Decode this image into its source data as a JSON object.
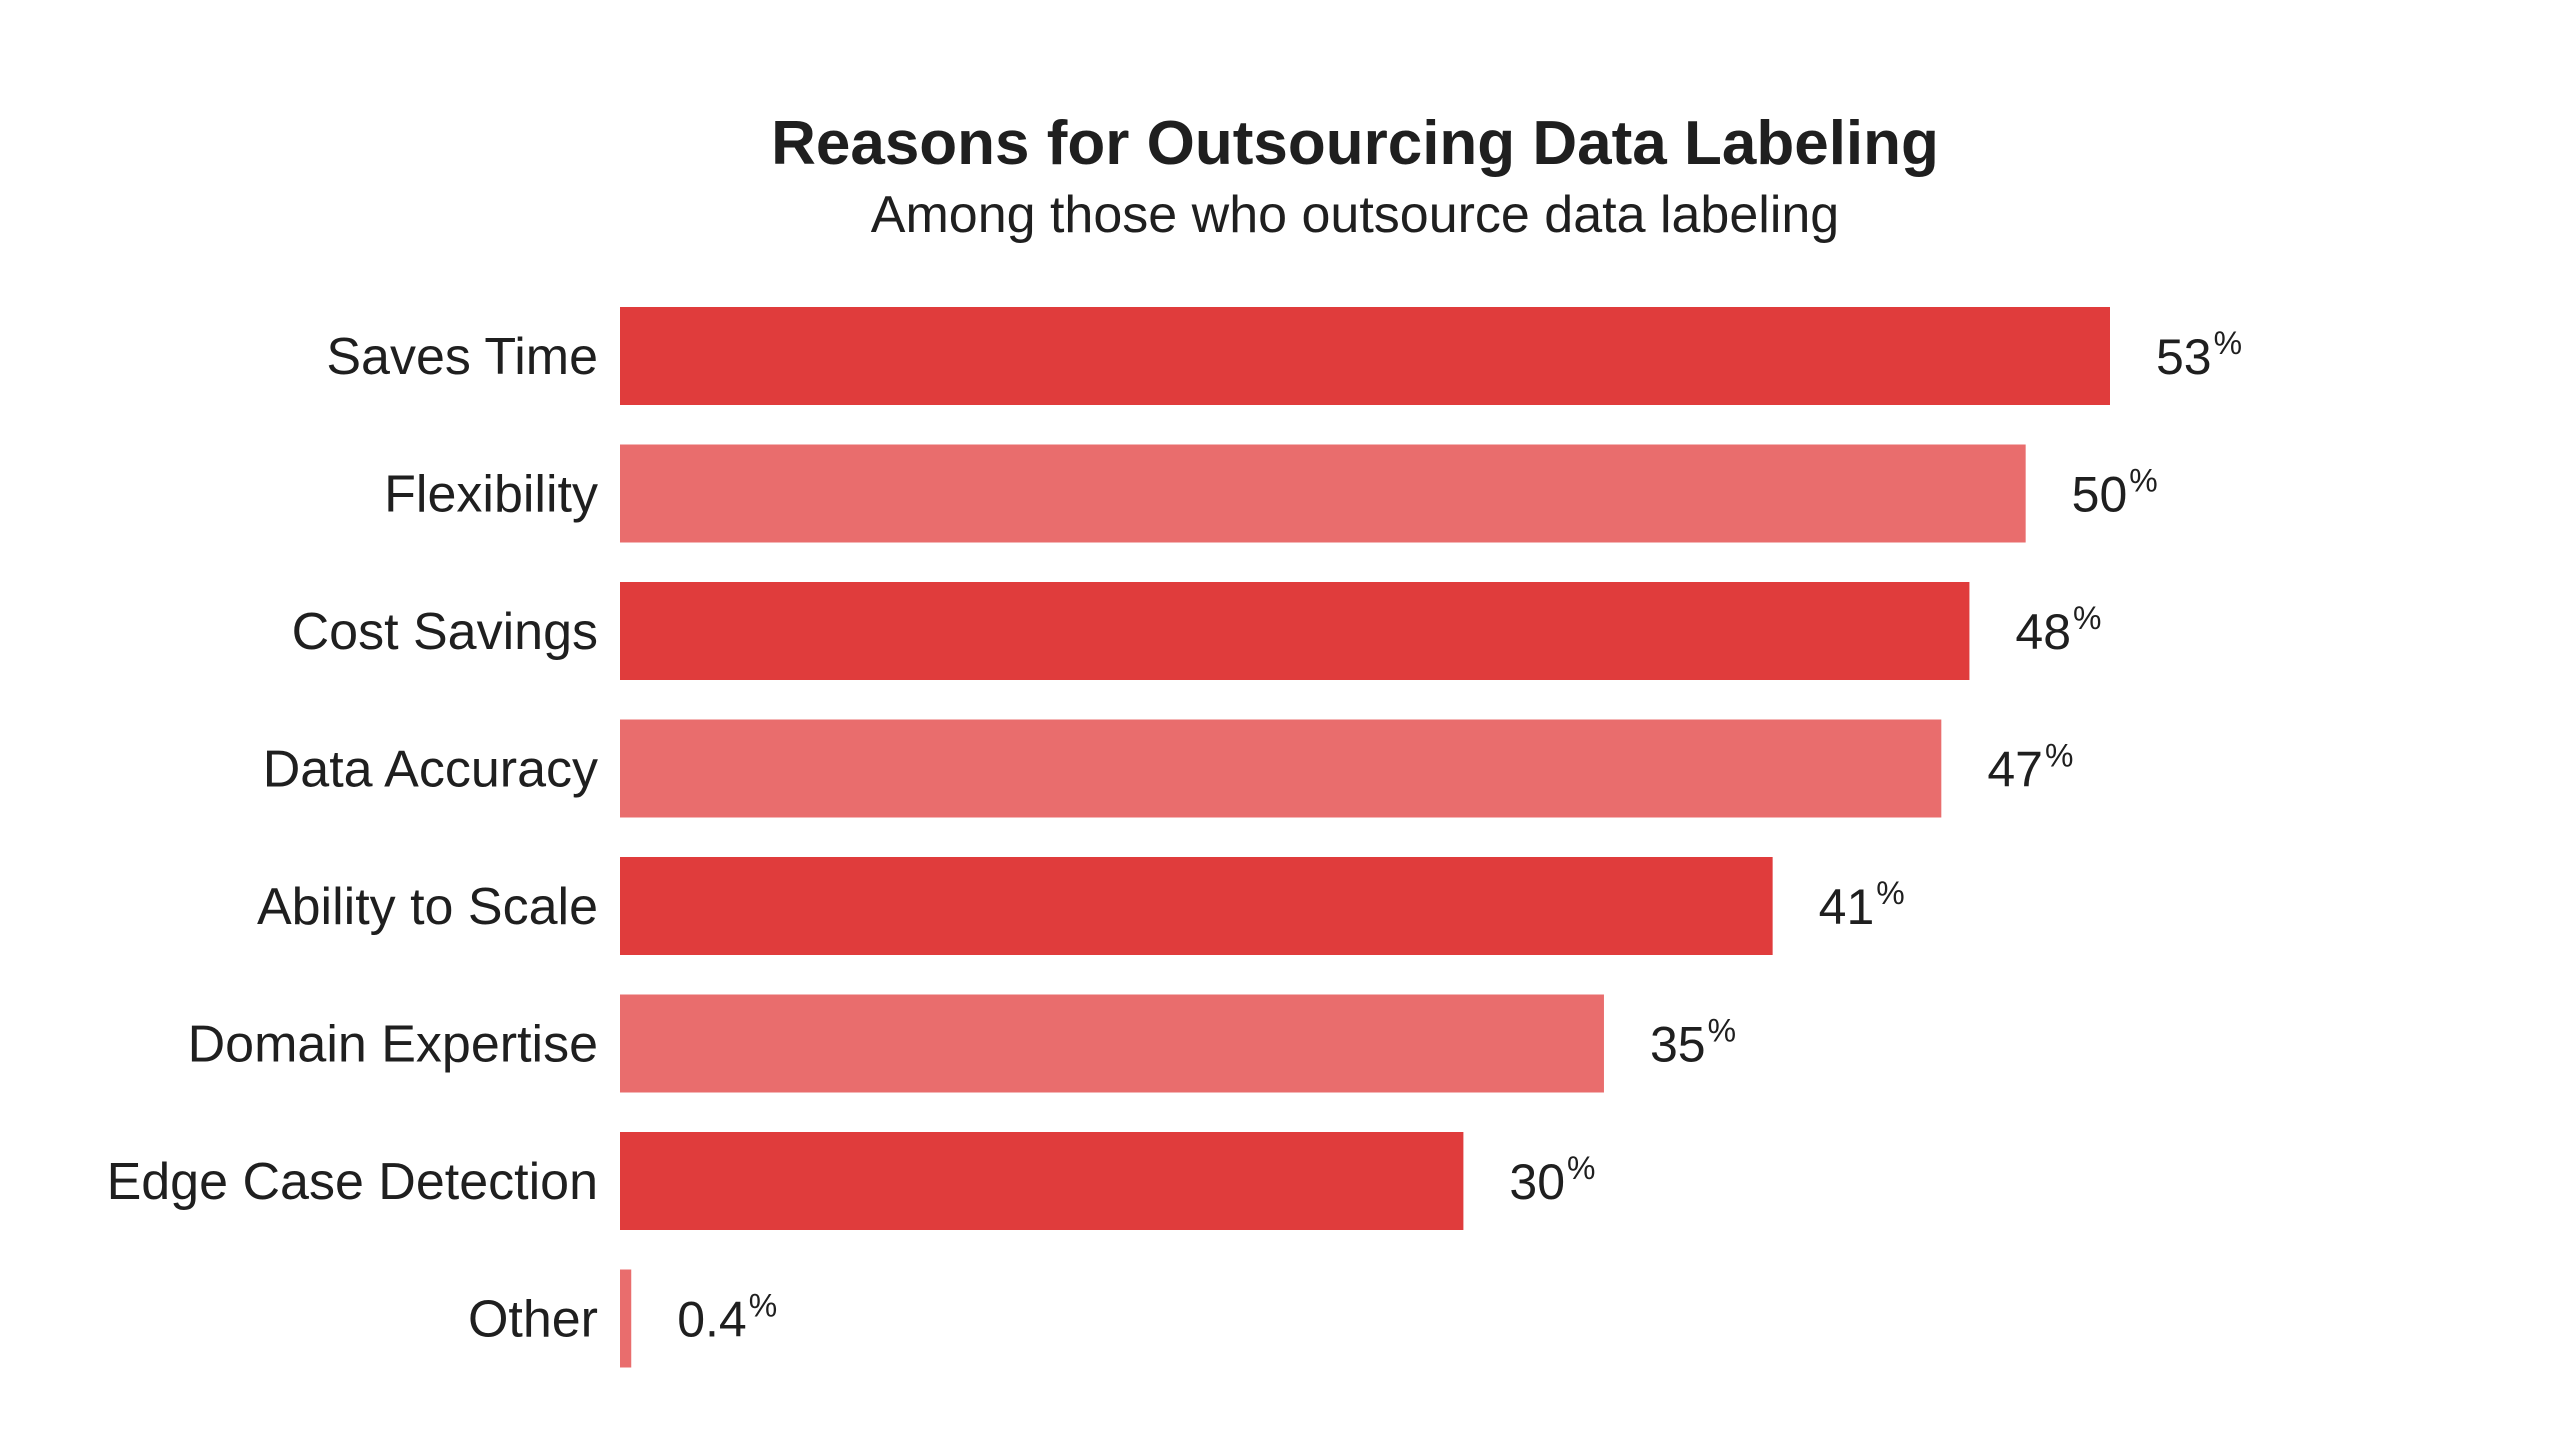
{
  "chart_data": {
    "type": "bar",
    "orientation": "horizontal",
    "title": "Reasons for Outsourcing Data Labeling",
    "subtitle": "Among those who outsource data labeling",
    "categories": [
      "Saves Time",
      "Flexibility",
      "Cost Savings",
      "Data Accuracy",
      "Ability to Scale",
      "Domain Expertise",
      "Edge Case Detection",
      "Other"
    ],
    "values": [
      53,
      50,
      48,
      47,
      41,
      35,
      30,
      0.4
    ],
    "value_labels": [
      "53",
      "50",
      "48",
      "47",
      "41",
      "35",
      "30",
      "0.4"
    ],
    "value_suffix": "%",
    "xlim": [
      0,
      53
    ],
    "grid": false,
    "legend": "none",
    "colors": [
      "#e03c3c",
      "#e96d6d"
    ]
  }
}
